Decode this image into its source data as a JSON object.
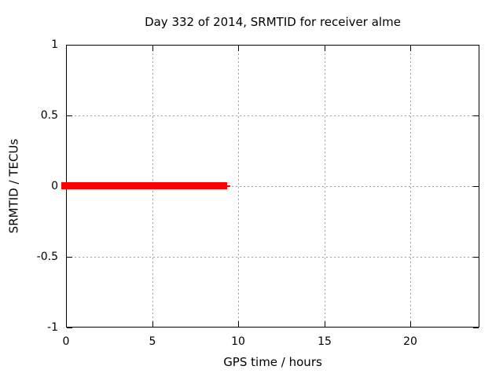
{
  "chart_data": {
    "type": "line",
    "title": "Day 332 of 2014, SRMTID for receiver alme",
    "xlabel": "GPS time / hours",
    "ylabel": "SRMTID / TECUs",
    "xlim": [
      0,
      24
    ],
    "ylim": [
      -1,
      1
    ],
    "xticks": [
      0,
      5,
      10,
      15,
      20
    ],
    "yticks": [
      -1,
      -0.5,
      0,
      0.5,
      1
    ],
    "grid": true,
    "legend_position": "none",
    "series": [
      {
        "name": "SRMTID",
        "color": "#ff0000",
        "x": [
          0,
          9.35
        ],
        "y": [
          0,
          0
        ],
        "description": "thick flat red segment at SRMTID = 0 TECUs from hour 0 to about hour 9.35"
      }
    ],
    "colors": {
      "line": "#ff0000",
      "grid": "#9e9e9e",
      "border": "#000000",
      "background": "#ffffff",
      "text": "#000000"
    }
  }
}
